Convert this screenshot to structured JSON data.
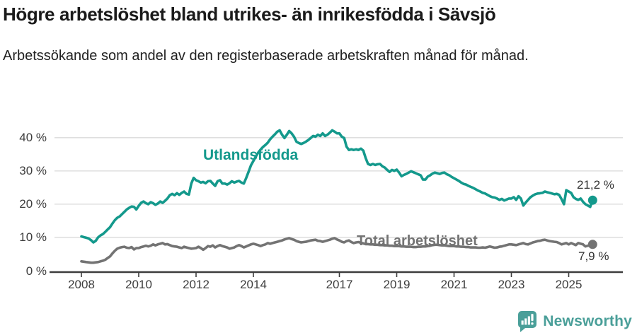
{
  "header": {
    "title": "Högre arbetslöshet bland utrikes- än inrikesfödda i Sävsjö",
    "subtitle": "Arbetssökande som andel av den registerbaserade arbetskraften månad för månad."
  },
  "chart_data": {
    "type": "line",
    "title": "Högre arbetslöshet bland utrikes- än inrikesfödda i Sävsjö",
    "x_unit": "month",
    "x_start": "2008-01",
    "x_end": "2025-11",
    "ylim": [
      0,
      44
    ],
    "grid": true,
    "y_ticks": [
      0,
      10,
      20,
      30,
      40
    ],
    "y_tick_labels": [
      "0 %",
      "10 %",
      "20 %",
      "30 %",
      "40 %"
    ],
    "x_tick_years": [
      2008,
      2010,
      2012,
      2014,
      2017,
      2019,
      2021,
      2023,
      2025
    ],
    "axis_color": "#3d3d3d",
    "grid_color": "#dadada",
    "series": [
      {
        "name": "Utlandsfödda",
        "color": "#14998c",
        "end_label": "21,2 %",
        "end_value": 21.2,
        "values": [
          10.3,
          10.1,
          9.9,
          9.7,
          9.2,
          8.5,
          9.0,
          10.0,
          10.6,
          11.0,
          11.7,
          12.4,
          13.1,
          14.2,
          15.2,
          15.9,
          16.3,
          17.0,
          17.7,
          18.4,
          18.9,
          19.3,
          19.2,
          18.4,
          19.5,
          20.4,
          20.8,
          20.3,
          20.0,
          20.6,
          20.3,
          19.8,
          20.2,
          20.8,
          20.4,
          21.0,
          21.7,
          22.7,
          23.1,
          22.7,
          23.3,
          22.8,
          23.4,
          23.8,
          23.1,
          22.9,
          26.2,
          27.9,
          27.2,
          26.9,
          26.5,
          26.7,
          26.3,
          26.9,
          27.0,
          26.2,
          25.5,
          26.9,
          27.2,
          26.2,
          26.2,
          25.9,
          26.3,
          26.9,
          26.5,
          26.8,
          27.0,
          26.5,
          26.2,
          27.9,
          29.8,
          31.7,
          33.0,
          34.3,
          35.5,
          36.4,
          37.2,
          37.8,
          38.5,
          39.5,
          40.3,
          41.0,
          41.8,
          42.2,
          40.9,
          39.9,
          40.9,
          42.0,
          41.3,
          40.3,
          38.8,
          38.4,
          38.1,
          38.4,
          38.8,
          39.3,
          39.9,
          40.5,
          40.3,
          40.9,
          40.5,
          41.3,
          40.5,
          40.9,
          41.5,
          42.2,
          41.8,
          41.3,
          41.3,
          40.3,
          39.9,
          37.3,
          36.3,
          36.5,
          36.3,
          36.5,
          36.3,
          36.7,
          36.1,
          33.9,
          32.1,
          31.8,
          32.1,
          31.8,
          32.0,
          32.1,
          31.4,
          31.0,
          30.3,
          29.7,
          30.3,
          30.0,
          30.4,
          29.5,
          28.4,
          28.8,
          29.1,
          29.5,
          29.9,
          29.6,
          29.3,
          29.0,
          28.7,
          27.4,
          27.4,
          28.3,
          28.7,
          29.2,
          29.5,
          29.3,
          29.1,
          29.4,
          29.5,
          29.0,
          28.7,
          28.2,
          27.8,
          27.4,
          27.0,
          26.5,
          26.1,
          25.9,
          25.5,
          25.2,
          24.9,
          24.5,
          24.1,
          23.8,
          23.4,
          23.2,
          22.8,
          22.4,
          22.1,
          22.0,
          21.7,
          21.3,
          21.6,
          21.1,
          21.4,
          21.7,
          21.7,
          22.1,
          21.3,
          22.4,
          21.7,
          19.6,
          20.5,
          21.3,
          22.1,
          22.6,
          23.0,
          23.2,
          23.3,
          23.4,
          23.8,
          23.6,
          23.4,
          23.2,
          23.0,
          23.1,
          22.8,
          21.5,
          20.0,
          24.2,
          23.8,
          23.4,
          22.1,
          21.6,
          21.3,
          21.7,
          20.7,
          20.0,
          19.6,
          19.2,
          21.2
        ]
      },
      {
        "name": "Total arbetslöshet",
        "color": "#737373",
        "end_label": "7,9 %",
        "end_value": 7.9,
        "values": [
          2.8,
          2.7,
          2.6,
          2.5,
          2.4,
          2.4,
          2.5,
          2.6,
          2.8,
          3.0,
          3.3,
          3.8,
          4.3,
          5.2,
          6.0,
          6.6,
          6.9,
          7.1,
          7.2,
          6.9,
          6.8,
          7.1,
          6.4,
          6.8,
          6.8,
          7.1,
          7.3,
          7.5,
          7.3,
          7.5,
          7.9,
          7.6,
          7.9,
          8.1,
          8.3,
          7.9,
          8.0,
          7.7,
          7.4,
          7.3,
          7.2,
          7.0,
          6.8,
          7.2,
          7.0,
          6.8,
          6.6,
          6.7,
          6.8,
          7.2,
          6.8,
          6.3,
          6.8,
          7.4,
          7.2,
          7.6,
          7.0,
          7.4,
          7.7,
          7.4,
          7.2,
          7.0,
          6.6,
          6.8,
          7.0,
          7.4,
          7.7,
          7.4,
          7.0,
          7.3,
          7.6,
          7.9,
          8.1,
          7.9,
          7.7,
          7.4,
          7.7,
          7.9,
          8.3,
          8.1,
          8.3,
          8.5,
          8.7,
          8.9,
          9.1,
          9.4,
          9.6,
          9.8,
          9.5,
          9.3,
          8.9,
          8.7,
          8.5,
          8.6,
          8.7,
          8.9,
          9.1,
          9.2,
          9.3,
          9.0,
          8.9,
          8.7,
          8.9,
          9.1,
          9.3,
          9.6,
          9.8,
          9.4,
          9.1,
          8.7,
          8.5,
          8.9,
          9.1,
          8.6,
          8.3,
          8.5,
          8.6,
          8.4,
          8.2,
          8.0,
          8.0,
          7.9,
          7.9,
          7.8,
          7.8,
          7.7,
          7.7,
          7.6,
          7.6,
          7.5,
          7.5,
          7.4,
          7.4,
          7.4,
          7.3,
          7.3,
          7.2,
          7.2,
          7.2,
          7.1,
          7.1,
          7.2,
          7.2,
          7.3,
          7.3,
          7.4,
          7.5,
          7.7,
          7.8,
          7.8,
          7.7,
          7.6,
          7.6,
          7.5,
          7.4,
          7.4,
          7.4,
          7.3,
          7.3,
          7.2,
          7.2,
          7.1,
          7.1,
          7.0,
          7.0,
          7.0,
          6.9,
          6.9,
          7.0,
          6.9,
          7.1,
          7.3,
          7.1,
          6.9,
          7.0,
          7.2,
          7.3,
          7.5,
          7.7,
          7.9,
          7.9,
          7.8,
          7.7,
          7.9,
          8.1,
          8.3,
          8.0,
          7.9,
          8.2,
          8.5,
          8.7,
          8.9,
          9.0,
          9.2,
          9.3,
          9.1,
          8.9,
          8.8,
          8.7,
          8.6,
          8.3,
          7.9,
          8.1,
          8.3,
          7.9,
          8.3,
          8.0,
          7.7,
          8.3,
          8.1,
          7.9,
          7.3,
          7.5,
          7.7,
          7.9
        ]
      }
    ]
  },
  "footer": {
    "brand": "Newsworthy",
    "brand_color": "#4a9f99"
  }
}
